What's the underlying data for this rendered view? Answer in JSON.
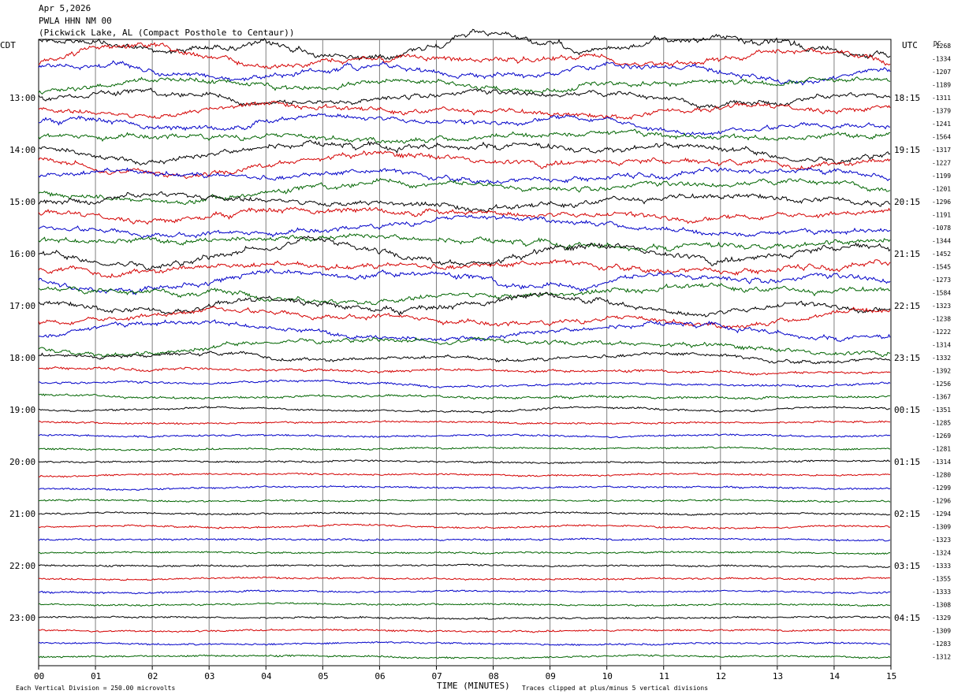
{
  "header": {
    "date": "Apr 5,2026",
    "station": "PWLA HHN NM 00",
    "location": "(Pickwick Lake, AL (Compact Posthole to Centaur))"
  },
  "chart_data": {
    "type": "line",
    "title": "",
    "left_axis_label": "CDT",
    "right_axis_label": "UTC",
    "dc_label": "DC",
    "xlabel": "TIME (MINUTES)",
    "x_ticks": [
      "00",
      "01",
      "02",
      "03",
      "04",
      "05",
      "06",
      "07",
      "08",
      "09",
      "10",
      "11",
      "12",
      "13",
      "14",
      "15"
    ],
    "xlim": [
      0,
      15
    ],
    "left_hour_labels": [
      "13:00",
      "14:00",
      "15:00",
      "16:00",
      "17:00",
      "18:00",
      "19:00",
      "20:00",
      "21:00",
      "22:00",
      "23:00"
    ],
    "right_hour_labels": [
      "18:15",
      "19:15",
      "20:15",
      "21:15",
      "22:15",
      "23:15",
      "00:15",
      "01:15",
      "02:15",
      "03:15",
      "04:15"
    ],
    "dc_offsets": [
      "-1268",
      "-1334",
      "-1207",
      "-1189",
      "-1311",
      "-1379",
      "-1241",
      "-1564",
      "-1317",
      "-1227",
      "-1199",
      "-1201",
      "-1296",
      "-1191",
      "-1078",
      "-1344",
      "-1452",
      "-1545",
      "-1273",
      "-1584",
      "-1323",
      "-1238",
      "-1222",
      "-1314",
      "-1332",
      "-1392",
      "-1256",
      "-1367",
      "-1351",
      "-1285",
      "-1269",
      "-1281",
      "-1314",
      "-1280",
      "-1299",
      "-1296",
      "-1294",
      "-1309",
      "-1323",
      "-1324",
      "-1333",
      "-1355",
      "-1333",
      "-1308",
      "-1329",
      "-1309",
      "-1283",
      "-1312"
    ],
    "trace_colors": [
      "#000000",
      "#d40000",
      "#0000c8",
      "#006400"
    ],
    "trace_activity": [
      3.2,
      2.8,
      2.6,
      2.4,
      2.6,
      2.5,
      2.4,
      2.6,
      2.8,
      2.6,
      2.5,
      2.7,
      2.8,
      2.6,
      2.4,
      2.7,
      3.0,
      2.8,
      2.9,
      2.7,
      2.6,
      2.4,
      2.2,
      2.0,
      1.6,
      1.0,
      0.8,
      0.8,
      0.6,
      0.45,
      0.4,
      0.4,
      0.4,
      0.4,
      0.4,
      0.4,
      0.4,
      0.4,
      0.4,
      0.4,
      0.4,
      0.45,
      0.4,
      0.4,
      0.4,
      0.4,
      0.4,
      0.45
    ],
    "footer_scale": "Each Vertical Division =  250.00 microvolts",
    "footer_clip": "Traces clipped at plus/minus 5 vertical divisions"
  }
}
